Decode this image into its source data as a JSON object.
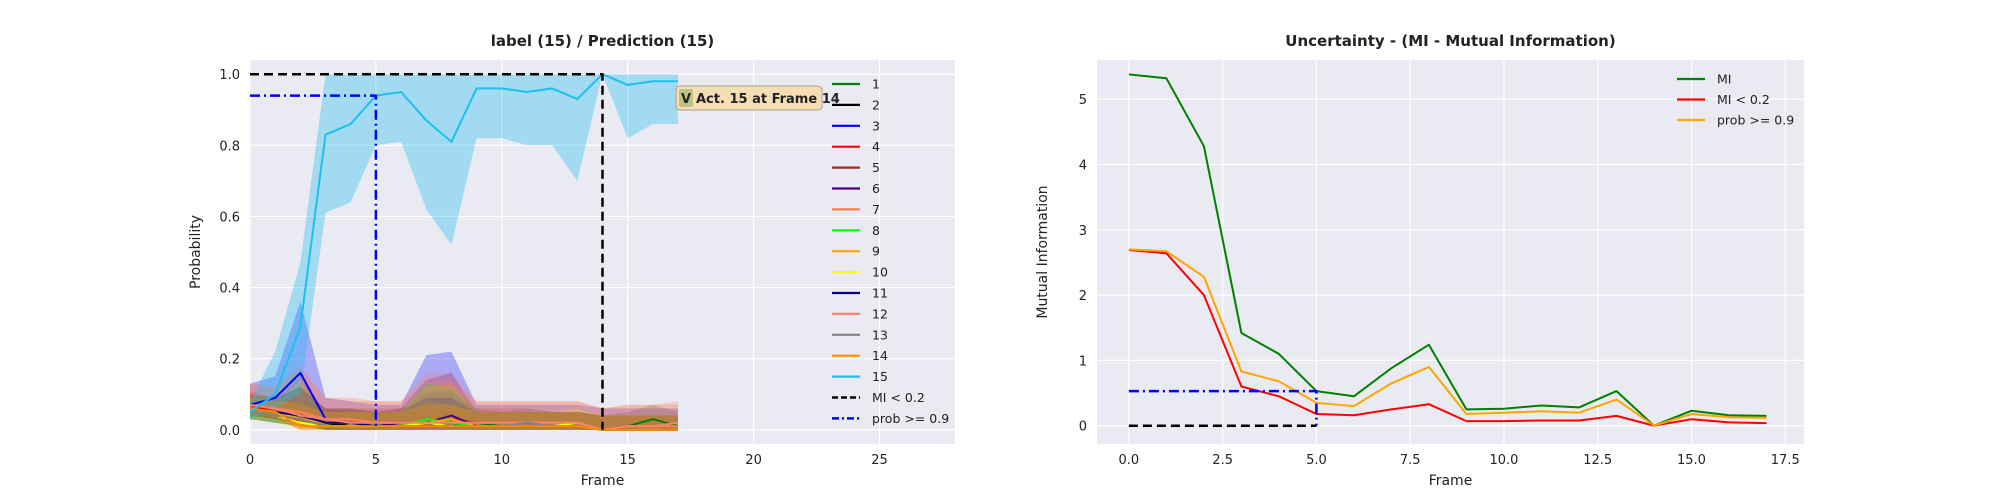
{
  "chart_data": [
    {
      "type": "line",
      "title": "label (15) / Prediction (15)",
      "xlabel": "Frame",
      "ylabel": "Probability",
      "xlim": [
        0,
        28
      ],
      "ylim": [
        -0.04,
        1.04
      ],
      "xticks": [
        0,
        5,
        10,
        15,
        20,
        25
      ],
      "yticks": [
        0.0,
        0.2,
        0.4,
        0.6,
        0.8,
        1.0
      ],
      "grid": true,
      "legend_position": "right",
      "x": [
        0,
        1,
        2,
        3,
        4,
        5,
        6,
        7,
        8,
        9,
        10,
        11,
        12,
        13,
        14,
        15,
        16,
        17
      ],
      "series": [
        {
          "name": "1",
          "color": "#008000",
          "values": [
            0.05,
            0.04,
            0.03,
            0.01,
            0.02,
            0.01,
            0.02,
            0.02,
            0.01,
            0.02,
            0.01,
            0.01,
            0.01,
            0.01,
            0.0,
            0.01,
            0.03,
            0.01
          ],
          "band": [
            0.02,
            0.03
          ]
        },
        {
          "name": "2",
          "color": "#000000",
          "values": [
            0.06,
            0.05,
            0.04,
            0.02,
            0.01,
            0.01,
            0.01,
            0.01,
            0.01,
            0.01,
            0.01,
            0.01,
            0.01,
            0.01,
            0.0,
            0.0,
            0.0,
            0.0
          ],
          "band": [
            0.02,
            0.02
          ]
        },
        {
          "name": "3",
          "color": "#0000ff",
          "values": [
            0.07,
            0.09,
            0.16,
            0.03,
            0.02,
            0.01,
            0.01,
            0.01,
            0.02,
            0.01,
            0.01,
            0.01,
            0.01,
            0.01,
            0.0,
            0.0,
            0.0,
            0.0
          ],
          "band": [
            0.03,
            0.1
          ]
        },
        {
          "name": "4",
          "color": "#ff0000",
          "values": [
            0.07,
            0.05,
            0.02,
            0.01,
            0.01,
            0.01,
            0.01,
            0.01,
            0.01,
            0.01,
            0.01,
            0.01,
            0.01,
            0.01,
            0.0,
            0.0,
            0.0,
            0.0
          ],
          "band": [
            0.02,
            0.03
          ]
        },
        {
          "name": "5",
          "color": "#a52a2a",
          "values": [
            0.06,
            0.05,
            0.04,
            0.02,
            0.02,
            0.02,
            0.02,
            0.02,
            0.03,
            0.02,
            0.02,
            0.02,
            0.01,
            0.01,
            0.0,
            0.0,
            0.0,
            0.0
          ],
          "band": [
            0.02,
            0.04
          ]
        },
        {
          "name": "6",
          "color": "#4b0082",
          "values": [
            0.05,
            0.04,
            0.03,
            0.01,
            0.01,
            0.01,
            0.02,
            0.02,
            0.04,
            0.01,
            0.01,
            0.01,
            0.01,
            0.01,
            0.0,
            0.0,
            0.0,
            0.0
          ],
          "band": [
            0.02,
            0.06
          ]
        },
        {
          "name": "7",
          "color": "#ff7f50",
          "values": [
            0.07,
            0.06,
            0.05,
            0.03,
            0.03,
            0.02,
            0.02,
            0.02,
            0.02,
            0.02,
            0.02,
            0.02,
            0.02,
            0.02,
            0.0,
            0.01,
            0.01,
            0.01
          ],
          "band": [
            0.03,
            0.06
          ]
        },
        {
          "name": "8",
          "color": "#00ff00",
          "values": [
            0.05,
            0.04,
            0.03,
            0.01,
            0.01,
            0.01,
            0.01,
            0.03,
            0.02,
            0.01,
            0.01,
            0.01,
            0.01,
            0.01,
            0.0,
            0.0,
            0.0,
            0.0
          ],
          "band": [
            0.02,
            0.05
          ]
        },
        {
          "name": "9",
          "color": "#ffa500",
          "values": [
            0.06,
            0.05,
            0.03,
            0.02,
            0.02,
            0.01,
            0.01,
            0.02,
            0.03,
            0.01,
            0.01,
            0.01,
            0.01,
            0.01,
            0.0,
            0.0,
            0.0,
            0.0
          ],
          "band": [
            0.02,
            0.05
          ]
        },
        {
          "name": "10",
          "color": "#ffff00",
          "values": [
            0.05,
            0.04,
            0.02,
            0.01,
            0.01,
            0.01,
            0.01,
            0.02,
            0.01,
            0.01,
            0.01,
            0.01,
            0.01,
            0.02,
            0.0,
            0.0,
            0.0,
            0.0
          ],
          "band": [
            0.02,
            0.03
          ]
        },
        {
          "name": "11",
          "color": "#00008b",
          "values": [
            0.06,
            0.05,
            0.04,
            0.02,
            0.02,
            0.01,
            0.01,
            0.01,
            0.01,
            0.01,
            0.01,
            0.01,
            0.01,
            0.01,
            0.0,
            0.0,
            0.0,
            0.0
          ],
          "band": [
            0.02,
            0.04
          ]
        },
        {
          "name": "12",
          "color": "#fa8072",
          "values": [
            0.07,
            0.06,
            0.04,
            0.03,
            0.02,
            0.02,
            0.02,
            0.02,
            0.02,
            0.02,
            0.02,
            0.02,
            0.02,
            0.02,
            0.0,
            0.01,
            0.01,
            0.02
          ],
          "band": [
            0.03,
            0.07
          ]
        },
        {
          "name": "13",
          "color": "#808080",
          "values": [
            0.05,
            0.04,
            0.03,
            0.01,
            0.01,
            0.01,
            0.01,
            0.01,
            0.01,
            0.01,
            0.01,
            0.02,
            0.01,
            0.01,
            0.0,
            0.0,
            0.0,
            0.0
          ],
          "band": [
            0.02,
            0.05
          ]
        },
        {
          "name": "14",
          "color": "#ff8c00",
          "values": [
            0.06,
            0.05,
            0.01,
            0.01,
            0.01,
            0.01,
            0.01,
            0.01,
            0.01,
            0.01,
            0.01,
            0.01,
            0.01,
            0.01,
            0.0,
            0.0,
            0.0,
            0.0
          ],
          "band": [
            0.02,
            0.03
          ]
        },
        {
          "name": "15",
          "color": "#1cc0f0",
          "values": [
            0.05,
            0.1,
            0.29,
            0.83,
            0.86,
            0.94,
            0.95,
            0.87,
            0.81,
            0.96,
            0.96,
            0.95,
            0.96,
            0.93,
            1.0,
            0.97,
            0.98,
            0.98
          ],
          "lower": [
            0.03,
            0.06,
            0.1,
            0.61,
            0.64,
            0.8,
            0.81,
            0.62,
            0.52,
            0.82,
            0.82,
            0.8,
            0.8,
            0.7,
            1.0,
            0.82,
            0.86,
            0.86
          ],
          "upper": [
            0.08,
            0.22,
            0.47,
            1.0,
            1.0,
            1.0,
            1.0,
            1.0,
            1.0,
            1.0,
            1.0,
            1.0,
            1.0,
            1.0,
            1.0,
            1.0,
            1.0,
            1.0
          ]
        },
        {
          "name": "MI < 0.2",
          "color": "#000000",
          "style": "dashed",
          "points": [
            [
              0,
              1.0
            ],
            [
              14,
              1.0
            ],
            [
              14,
              0.0
            ]
          ]
        },
        {
          "name": "prob >= 0.9",
          "color": "#0000ff",
          "style": "dashdot",
          "points": [
            [
              0,
              0.94
            ],
            [
              5,
              0.94
            ],
            [
              5,
              0.0
            ]
          ]
        }
      ],
      "annotation": {
        "badge": "V",
        "text": "Act. 15 at Frame 14",
        "badge_color": "#5a8f2a",
        "box_color": "#f5deb3"
      }
    },
    {
      "type": "line",
      "title": "Uncertainty - (MI - Mutual Information)",
      "xlabel": "Frame",
      "ylabel": "Mutual Information",
      "xlim": [
        -0.85,
        18.0
      ],
      "ylim": [
        -0.28,
        5.6
      ],
      "xticks": [
        "0.0",
        "2.5",
        "5.0",
        "7.5",
        "10.0",
        "12.5",
        "15.0",
        "17.5"
      ],
      "yticks": [
        0,
        1,
        2,
        3,
        4,
        5
      ],
      "grid": true,
      "legend_position": "top-right",
      "x": [
        0,
        1,
        2,
        3,
        4,
        5,
        6,
        7,
        8,
        9,
        10,
        11,
        12,
        13,
        14,
        15,
        16,
        17
      ],
      "series": [
        {
          "name": "MI",
          "color": "#008000",
          "values": [
            5.38,
            5.32,
            4.28,
            1.42,
            1.1,
            0.53,
            0.45,
            0.88,
            1.24,
            0.25,
            0.26,
            0.31,
            0.28,
            0.53,
            0.0,
            0.23,
            0.16,
            0.15
          ]
        },
        {
          "name": "MI < 0.2",
          "color": "#ff0000",
          "values": [
            2.69,
            2.64,
            2.0,
            0.6,
            0.45,
            0.18,
            0.16,
            0.25,
            0.33,
            0.07,
            0.07,
            0.08,
            0.08,
            0.15,
            0.0,
            0.1,
            0.05,
            0.04
          ]
        },
        {
          "name": "prob >= 0.9",
          "color": "#ffa500",
          "values": [
            2.7,
            2.67,
            2.28,
            0.83,
            0.68,
            0.35,
            0.3,
            0.65,
            0.9,
            0.18,
            0.2,
            0.22,
            0.2,
            0.4,
            0.0,
            0.18,
            0.13,
            0.12
          ]
        },
        {
          "name": "",
          "color": "#000000",
          "style": "dashed",
          "points": [
            [
              0,
              0.0
            ],
            [
              5,
              0.0
            ]
          ]
        },
        {
          "name": "",
          "color": "#0000ff",
          "style": "dashdot",
          "points": [
            [
              0,
              0.53
            ],
            [
              5,
              0.53
            ],
            [
              5,
              0.0
            ]
          ]
        }
      ]
    }
  ]
}
